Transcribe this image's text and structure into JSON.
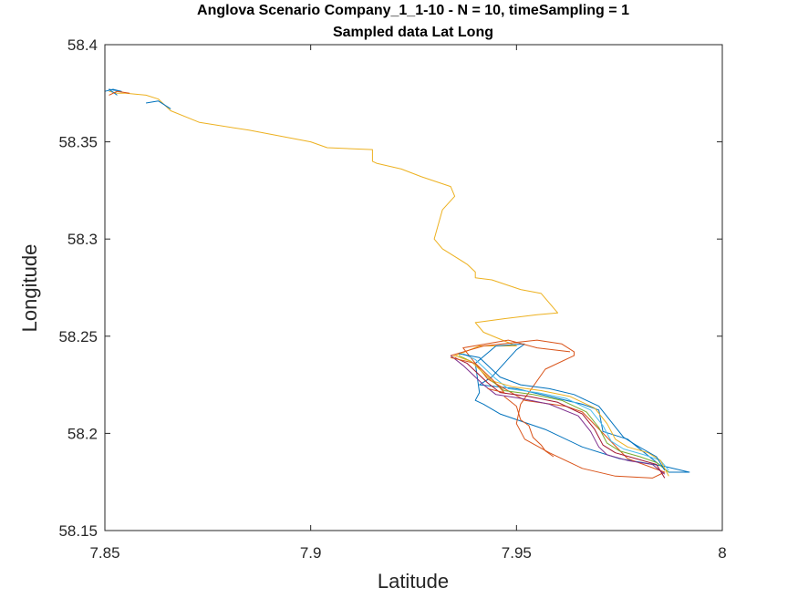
{
  "chart_data": {
    "type": "line",
    "title": [
      "Anglova Scenario Company_1_1-10 - N = 10, timeSampling = 1",
      "Sampled data Lat Long"
    ],
    "xlabel": "Latitude",
    "ylabel": "Longitude",
    "xlim": [
      7.85,
      8.0
    ],
    "ylim": [
      58.15,
      58.4
    ],
    "xticks": [
      "7.85",
      "7.9",
      "7.95",
      "8"
    ],
    "yticks": [
      "58.15",
      "58.2",
      "58.25",
      "58.3",
      "58.35",
      "58.4"
    ],
    "xtick_values": [
      7.85,
      7.9,
      7.95,
      8.0
    ],
    "ytick_values": [
      58.15,
      58.2,
      58.25,
      58.3,
      58.35,
      58.4
    ],
    "grid": false,
    "legend": false,
    "box": true,
    "colors": [
      "#0072BD",
      "#D95319",
      "#EDB120",
      "#7E2F8E",
      "#77AC30",
      "#4DBEEE",
      "#A2142F"
    ],
    "series": [
      {
        "color": "#EDB120",
        "x": [
          7.851,
          7.853,
          7.855,
          7.86,
          7.863,
          7.866,
          7.873,
          7.885,
          7.9,
          7.904,
          7.915,
          7.915,
          7.916,
          7.922,
          7.927,
          7.934,
          7.935,
          7.932,
          7.93,
          7.932,
          7.938,
          7.94,
          7.94,
          7.944,
          7.951,
          7.956,
          7.96,
          7.955,
          7.947,
          7.94,
          7.942,
          7.95,
          7.941,
          7.934
        ],
        "y": [
          58.376,
          58.375,
          58.375,
          58.374,
          58.372,
          58.366,
          58.36,
          58.356,
          58.35,
          58.347,
          58.346,
          58.34,
          58.339,
          58.336,
          58.332,
          58.327,
          58.322,
          58.315,
          58.3,
          58.295,
          58.287,
          58.283,
          58.28,
          58.279,
          58.274,
          58.272,
          58.262,
          58.261,
          58.259,
          58.257,
          58.252,
          58.245,
          58.245,
          58.239
        ]
      },
      {
        "color": "#0072BD",
        "x": [
          7.85,
          7.852,
          7.854,
          7.851,
          7.853
        ],
        "y": [
          58.376,
          58.377,
          58.376,
          58.377,
          58.374
        ]
      },
      {
        "color": "#0072BD",
        "x": [
          7.86,
          7.863,
          7.866
        ],
        "y": [
          58.37,
          58.371,
          58.367
        ]
      },
      {
        "color": "#D95319",
        "x": [
          7.851,
          7.853,
          7.856
        ],
        "y": [
          58.374,
          58.376,
          58.375
        ]
      },
      {
        "color": "#0072BD",
        "x": [
          7.952,
          7.945,
          7.94,
          7.941,
          7.94,
          7.942,
          7.946,
          7.957,
          7.966,
          7.975,
          7.986,
          7.992,
          7.987,
          7.977,
          7.971,
          7.97,
          7.966,
          7.95,
          7.941,
          7.944,
          7.95,
          7.952
        ],
        "y": [
          58.246,
          58.245,
          58.236,
          58.221,
          58.217,
          58.215,
          58.21,
          58.202,
          58.193,
          58.187,
          58.183,
          58.18,
          58.18,
          58.197,
          58.201,
          58.212,
          58.215,
          58.223,
          58.225,
          58.229,
          58.243,
          58.246
        ]
      },
      {
        "color": "#D95319",
        "x": [
          7.963,
          7.955,
          7.948,
          7.937,
          7.943,
          7.952,
          7.962,
          7.966,
          7.977,
          7.986,
          7.983,
          7.974,
          7.966,
          7.958,
          7.952,
          7.95,
          7.951,
          7.957,
          7.964,
          7.964,
          7.961,
          7.955,
          7.942,
          7.934
        ],
        "y": [
          58.242,
          58.244,
          58.248,
          58.244,
          58.228,
          58.217,
          58.214,
          58.211,
          58.187,
          58.18,
          58.177,
          58.178,
          58.182,
          58.19,
          58.197,
          58.205,
          58.215,
          58.233,
          58.24,
          58.242,
          58.246,
          58.248,
          58.245,
          58.24
        ]
      },
      {
        "color": "#7E2F8E",
        "x": [
          7.934,
          7.937,
          7.942,
          7.945,
          7.951,
          7.958,
          7.965,
          7.968,
          7.97,
          7.972,
          7.977,
          7.983,
          7.986
        ],
        "y": [
          58.24,
          58.235,
          58.225,
          58.22,
          58.218,
          58.215,
          58.209,
          58.201,
          58.193,
          58.189,
          58.186,
          58.184,
          58.179
        ]
      },
      {
        "color": "#A2142F",
        "x": [
          7.935,
          7.938,
          7.943,
          7.946,
          7.953,
          7.96,
          7.966,
          7.969,
          7.971,
          7.974,
          7.979,
          7.984,
          7.986
        ],
        "y": [
          58.239,
          58.236,
          58.226,
          58.221,
          58.219,
          58.216,
          58.21,
          58.202,
          58.194,
          58.19,
          58.187,
          58.184,
          58.177
        ]
      },
      {
        "color": "#77AC30",
        "x": [
          7.936,
          7.939,
          7.944,
          7.947,
          7.954,
          7.961,
          7.967,
          7.97,
          7.972,
          7.975,
          7.98,
          7.984,
          7.987
        ],
        "y": [
          58.24,
          58.237,
          58.227,
          58.222,
          58.22,
          58.217,
          58.211,
          58.203,
          58.195,
          58.191,
          58.188,
          58.185,
          58.18
        ]
      },
      {
        "color": "#4DBEEE",
        "x": [
          7.937,
          7.94,
          7.945,
          7.948,
          7.955,
          7.962,
          7.968,
          7.971,
          7.973,
          7.976,
          7.981,
          7.985,
          7.987
        ],
        "y": [
          58.241,
          58.238,
          58.228,
          58.223,
          58.221,
          58.218,
          58.212,
          58.204,
          58.196,
          58.192,
          58.189,
          58.186,
          58.181
        ]
      },
      {
        "color": "#EDB120",
        "x": [
          7.935,
          7.939,
          7.944,
          7.949,
          7.956,
          7.963,
          7.969,
          7.972,
          7.974,
          7.977,
          7.982,
          7.985,
          7.987
        ],
        "y": [
          58.24,
          58.237,
          58.227,
          58.224,
          58.222,
          58.219,
          58.213,
          58.205,
          58.197,
          58.193,
          58.19,
          58.186,
          58.178
        ]
      },
      {
        "color": "#0072BD",
        "x": [
          7.936,
          7.941,
          7.946,
          7.951,
          7.958,
          7.964,
          7.97,
          7.973,
          7.976,
          7.979,
          7.984,
          7.986
        ],
        "y": [
          58.241,
          58.239,
          58.229,
          58.225,
          58.223,
          58.22,
          58.214,
          58.206,
          58.198,
          58.194,
          58.188,
          58.181
        ]
      },
      {
        "color": "#D95319",
        "x": [
          7.934,
          7.94,
          7.944,
          7.947,
          7.943
        ],
        "y": [
          58.239,
          58.236,
          58.228,
          58.221,
          58.223
        ]
      },
      {
        "color": "#D95319",
        "x": [
          7.947,
          7.95,
          7.951,
          7.953,
          7.954,
          7.956,
          7.957,
          7.959
        ],
        "y": [
          58.219,
          58.214,
          58.207,
          58.204,
          58.198,
          58.194,
          58.191,
          58.188
        ]
      }
    ]
  }
}
